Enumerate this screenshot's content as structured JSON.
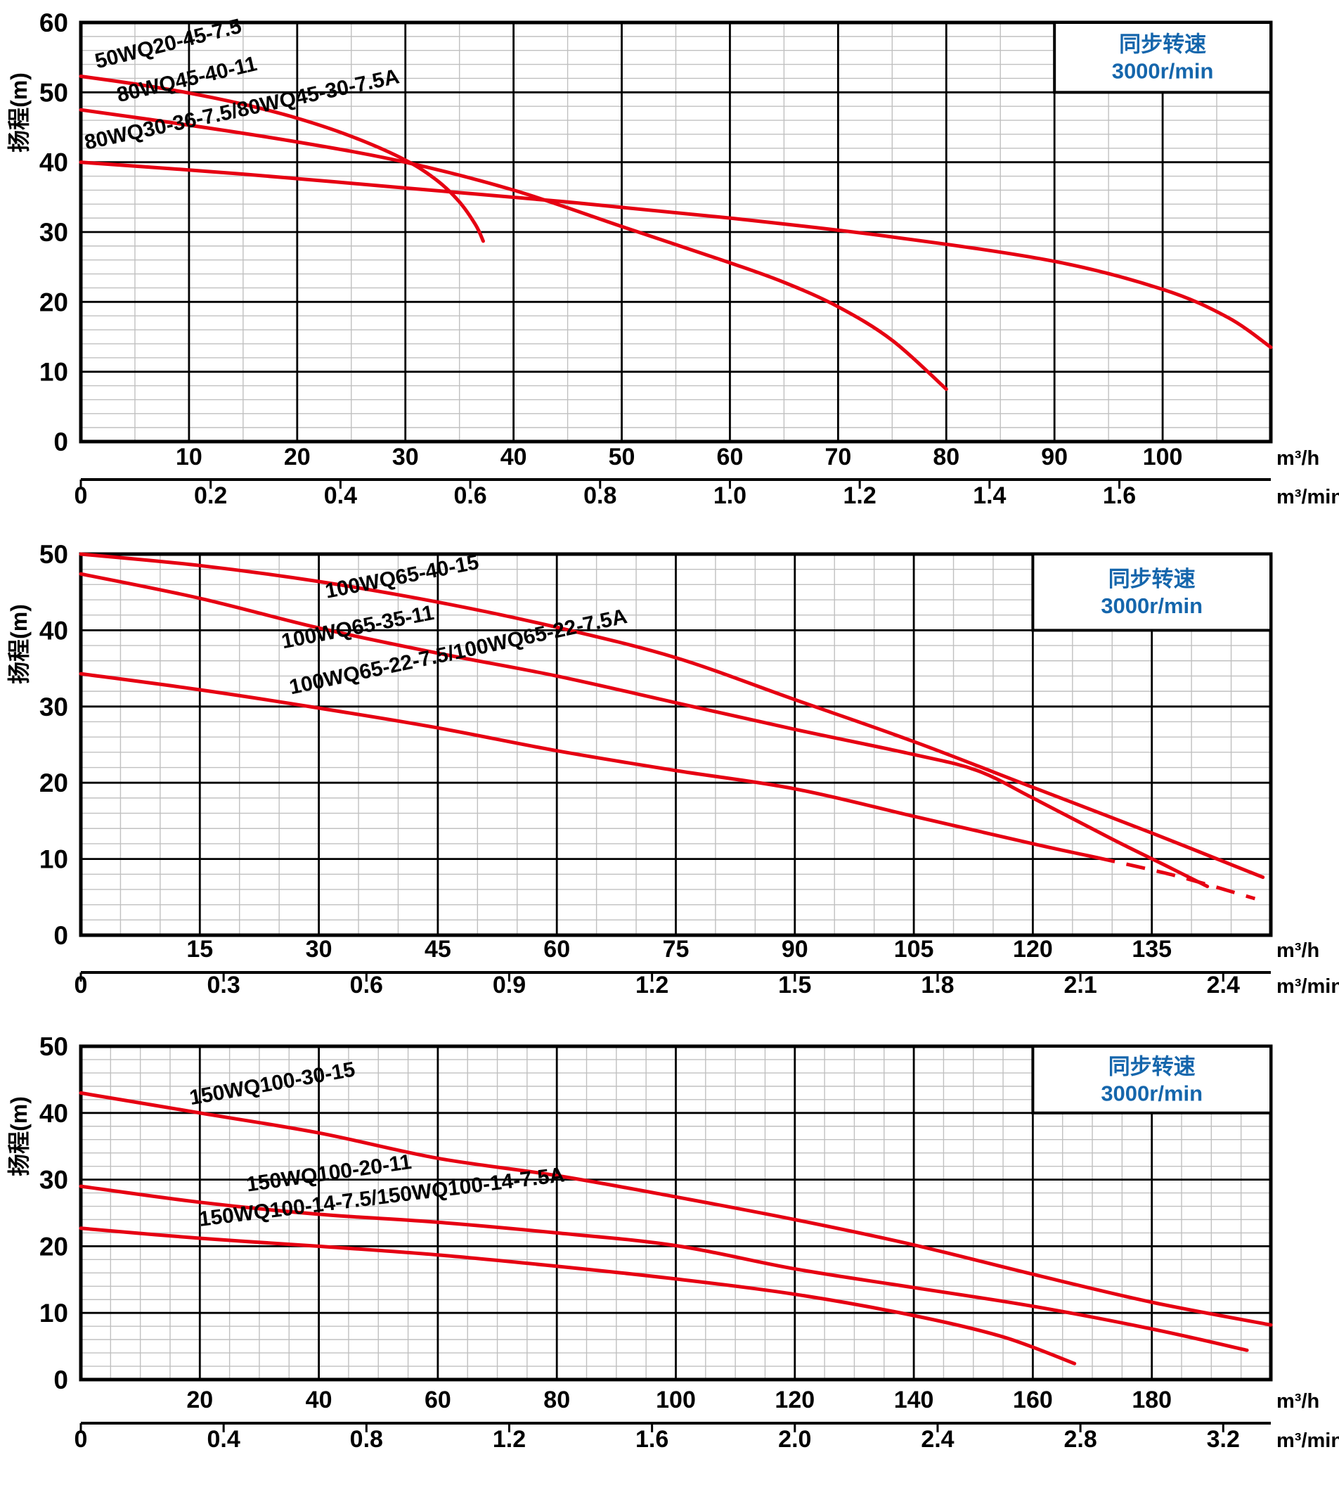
{
  "page": {
    "background": "#ffffff"
  },
  "colors": {
    "curve": "#e60012",
    "legend_text": "#1566ac",
    "major_grid": "#000000",
    "minor_grid": "#c0c0c0",
    "axis": "#000000"
  },
  "chart_data": [
    {
      "type": "line",
      "legend": [
        "同步转速",
        "3000r/min"
      ],
      "ylabel": "扬程(m)",
      "x_unit_h": "m³/h",
      "x_unit_min": "m³/min",
      "ylim": [
        0,
        60
      ],
      "xlim": [
        0,
        110
      ],
      "y_ticks": [
        0,
        10,
        20,
        30,
        40,
        50,
        60
      ],
      "y_major": 10,
      "y_minor": 2,
      "x_major": 10,
      "x_minor": 5,
      "x_ticks_m3h": [
        10,
        20,
        30,
        40,
        50,
        60,
        70,
        80,
        90,
        100
      ],
      "x_ticks_m3min": [
        {
          "v": 0,
          "t": "0"
        },
        {
          "v": 0.2,
          "t": "0.2"
        },
        {
          "v": 0.4,
          "t": "0.4"
        },
        {
          "v": 0.6,
          "t": "0.6"
        },
        {
          "v": 0.8,
          "t": "0.8"
        },
        {
          "v": 1.0,
          "t": "1.0"
        },
        {
          "v": 1.2,
          "t": "1.2"
        },
        {
          "v": 1.4,
          "t": "1.4"
        },
        {
          "v": 1.6,
          "t": "1.6"
        }
      ],
      "series": [
        {
          "name": "50WQ20-45-7.5",
          "label": {
            "x": 1.5,
            "y": 53.4,
            "rot": -14
          },
          "points": [
            [
              0,
              52.3
            ],
            [
              5,
              51.2
            ],
            [
              10,
              49.9
            ],
            [
              15,
              48.3
            ],
            [
              20,
              46.3
            ],
            [
              25,
              43.7
            ],
            [
              30,
              40.3
            ],
            [
              33,
              37.3
            ],
            [
              35,
              34.3
            ],
            [
              36.5,
              31
            ],
            [
              37.2,
              28.7
            ]
          ]
        },
        {
          "name": "80WQ45-40-11",
          "label": {
            "x": 3.5,
            "y": 48.6,
            "rot": -13
          },
          "points": [
            [
              0,
              47.5
            ],
            [
              10,
              45.3
            ],
            [
              20,
              42.9
            ],
            [
              30,
              40
            ],
            [
              40,
              36
            ],
            [
              50,
              30.8
            ],
            [
              60,
              25.6
            ],
            [
              65,
              22.8
            ],
            [
              70,
              19.3
            ],
            [
              75,
              14.5
            ],
            [
              80,
              7.5
            ]
          ]
        },
        {
          "name": "80WQ30-36-7.5/80WQ45-30-7.5A",
          "label": {
            "x": 0.5,
            "y": 41.8,
            "rot": -12
          },
          "points": [
            [
              0,
              40
            ],
            [
              15,
              38.3
            ],
            [
              30,
              36.3
            ],
            [
              45,
              34.3
            ],
            [
              60,
              32
            ],
            [
              75,
              29.3
            ],
            [
              90,
              25.8
            ],
            [
              100,
              21.8
            ],
            [
              106,
              17.8
            ],
            [
              110,
              13.5
            ]
          ]
        }
      ]
    },
    {
      "type": "line",
      "legend": [
        "同步转速",
        "3000r/min"
      ],
      "ylabel": "扬程(m)",
      "x_unit_h": "m³/h",
      "x_unit_min": "m³/min",
      "ylim": [
        0,
        50
      ],
      "xlim": [
        0,
        150
      ],
      "y_ticks": [
        0,
        10,
        20,
        30,
        40,
        50
      ],
      "y_major": 10,
      "y_minor": 2,
      "x_major": 15,
      "x_minor": 5,
      "x_ticks_m3h": [
        15,
        30,
        45,
        60,
        75,
        90,
        105,
        120,
        135
      ],
      "x_ticks_m3min": [
        {
          "v": 0,
          "t": "0"
        },
        {
          "v": 0.3,
          "t": "0.3"
        },
        {
          "v": 0.6,
          "t": "0.6"
        },
        {
          "v": 0.9,
          "t": "0.9"
        },
        {
          "v": 1.2,
          "t": "1.2"
        },
        {
          "v": 1.5,
          "t": "1.5"
        },
        {
          "v": 1.8,
          "t": "1.8"
        },
        {
          "v": 2.1,
          "t": "2.1"
        },
        {
          "v": 2.4,
          "t": "2.4"
        }
      ],
      "series": [
        {
          "name": "100WQ65-40-15",
          "label": {
            "x": 31,
            "y": 44.2,
            "rot": -11
          },
          "points": [
            [
              0,
              50
            ],
            [
              15,
              48.5
            ],
            [
              30,
              46.4
            ],
            [
              45,
              43.7
            ],
            [
              60,
              40.4
            ],
            [
              75,
              36.4
            ],
            [
              90,
              30.9
            ],
            [
              105,
              25.4
            ],
            [
              120,
              19.4
            ],
            [
              135,
              13.4
            ],
            [
              149,
              7.6
            ]
          ]
        },
        {
          "name": "100WQ65-35-11",
          "label": {
            "x": 25.5,
            "y": 37.6,
            "rot": -11
          },
          "points": [
            [
              0,
              47.4
            ],
            [
              15,
              44.2
            ],
            [
              30,
              40.3
            ],
            [
              45,
              37
            ],
            [
              60,
              34
            ],
            [
              75,
              30.5
            ],
            [
              90,
              27
            ],
            [
              105,
              23.7
            ],
            [
              113,
              21.6
            ],
            [
              120,
              18
            ],
            [
              130,
              12.6
            ],
            [
              137,
              9
            ],
            [
              142,
              6.4
            ]
          ]
        },
        {
          "name": "100WQ65-22-7.5/100WQ65-22-7.5A",
          "label": {
            "x": 26.5,
            "y": 31.6,
            "rot": -12
          },
          "points": [
            [
              0,
              34.3
            ],
            [
              15,
              32.2
            ],
            [
              30,
              29.8
            ],
            [
              45,
              27.2
            ],
            [
              60,
              24.2
            ],
            [
              75,
              21.6
            ],
            [
              90,
              19.2
            ],
            [
              105,
              15.6
            ],
            [
              120,
              12
            ],
            [
              128,
              10.2
            ]
          ],
          "dash_points": [
            [
              128,
              10.2
            ],
            [
              138,
              7.8
            ],
            [
              148,
              4.8
            ]
          ]
        }
      ]
    },
    {
      "type": "line",
      "legend": [
        "同步转速",
        "3000r/min"
      ],
      "ylabel": "扬程(m)",
      "x_unit_h": "m³/h",
      "x_unit_min": "m³/min",
      "ylim": [
        0,
        50
      ],
      "xlim": [
        0,
        200
      ],
      "y_ticks": [
        0,
        10,
        20,
        30,
        40,
        50
      ],
      "y_major": 10,
      "y_minor": 2,
      "x_major": 20,
      "x_minor": 5,
      "x_ticks_m3h": [
        20,
        40,
        60,
        80,
        100,
        120,
        140,
        160,
        180
      ],
      "x_ticks_m3min": [
        {
          "v": 0,
          "t": "0"
        },
        {
          "v": 0.4,
          "t": "0.4"
        },
        {
          "v": 0.8,
          "t": "0.8"
        },
        {
          "v": 1.2,
          "t": "1.2"
        },
        {
          "v": 1.6,
          "t": "1.6"
        },
        {
          "v": 2.0,
          "t": "2.0"
        },
        {
          "v": 2.4,
          "t": "2.4"
        },
        {
          "v": 2.8,
          "t": "2.8"
        },
        {
          "v": 3.2,
          "t": "3.2"
        }
      ],
      "series": [
        {
          "name": "150WQ100-30-15",
          "label": {
            "x": 18.5,
            "y": 41.2,
            "rot": -10
          },
          "points": [
            [
              0,
              43
            ],
            [
              20,
              40
            ],
            [
              40,
              37
            ],
            [
              60,
              33.2
            ],
            [
              80,
              30.6
            ],
            [
              100,
              27.4
            ],
            [
              120,
              24
            ],
            [
              140,
              20.2
            ],
            [
              160,
              15.8
            ],
            [
              180,
              11.6
            ],
            [
              200,
              8.2
            ]
          ]
        },
        {
          "name": "150WQ100-20-11",
          "label": {
            "x": 28,
            "y": 28.2,
            "rot": -8
          },
          "points": [
            [
              0,
              29
            ],
            [
              20,
              26.6
            ],
            [
              40,
              24.8
            ],
            [
              60,
              23.6
            ],
            [
              80,
              22
            ],
            [
              100,
              20.1
            ],
            [
              120,
              16.6
            ],
            [
              140,
              13.8
            ],
            [
              160,
              11
            ],
            [
              180,
              7.6
            ],
            [
              196,
              4.4
            ]
          ]
        },
        {
          "name": "150WQ100-14-7.5/150WQ100-14-7.5A",
          "label": {
            "x": 20,
            "y": 23,
            "rot": -7
          },
          "points": [
            [
              0,
              22.7
            ],
            [
              20,
              21.2
            ],
            [
              40,
              20
            ],
            [
              60,
              18.7
            ],
            [
              80,
              17
            ],
            [
              100,
              15.1
            ],
            [
              120,
              12.8
            ],
            [
              140,
              9.6
            ],
            [
              155,
              6.4
            ],
            [
              167,
              2.4
            ]
          ]
        }
      ]
    }
  ]
}
